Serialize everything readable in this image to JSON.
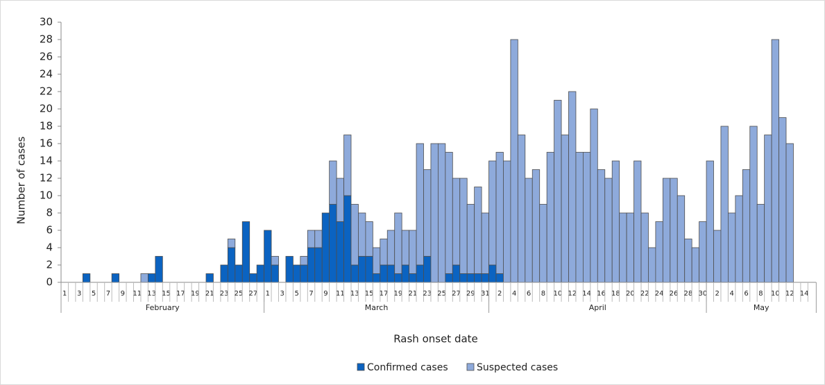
{
  "chart_data": {
    "type": "stacked-bar",
    "x_label": "Rash onset date",
    "y_label": "Number of cases",
    "categories": [
      "1",
      null,
      "3",
      null,
      "5",
      null,
      "7",
      null,
      "9",
      null,
      "11",
      null,
      "13",
      null,
      "15",
      null,
      "17",
      null,
      "19",
      null,
      "21",
      null,
      "23",
      null,
      "25",
      null,
      "27",
      null,
      "1",
      null,
      "3",
      null,
      "5",
      null,
      "7",
      null,
      "9",
      null,
      "11",
      null,
      "13",
      null,
      "15",
      null,
      "17",
      null,
      "19",
      null,
      "21",
      null,
      "23",
      null,
      "25",
      null,
      "27",
      null,
      "29",
      null,
      "31",
      null,
      "2",
      null,
      "4",
      null,
      "6",
      null,
      "8",
      null,
      "10",
      null,
      "12",
      null,
      "14",
      null,
      "16",
      null,
      "18",
      null,
      "20",
      null,
      "22",
      null,
      "24",
      null,
      "26",
      null,
      "28",
      null,
      "30",
      null,
      "2",
      null,
      "4",
      null,
      "6",
      null,
      "8",
      null,
      "10",
      null,
      "12",
      null,
      "14"
    ],
    "months": [
      "February",
      "March",
      "April",
      "May"
    ],
    "series": [
      {
        "name": "Confirmed cases",
        "color": "#0b63c1",
        "values": [
          0,
          0,
          0,
          1,
          0,
          0,
          0,
          1,
          0,
          0,
          0,
          0,
          1,
          3,
          0,
          0,
          0,
          0,
          0,
          0,
          1,
          0,
          2,
          4,
          2,
          7,
          1,
          2,
          6,
          2,
          0,
          3,
          2,
          2,
          4,
          4,
          8,
          9,
          7,
          10,
          2,
          3,
          3,
          1,
          2,
          2,
          1,
          2,
          1,
          2,
          3,
          0,
          0,
          1,
          2,
          1,
          1,
          1,
          1,
          2,
          1,
          0,
          0,
          0,
          0,
          0,
          0,
          0,
          0,
          0,
          0,
          0,
          0,
          0,
          0,
          0,
          0,
          0,
          0,
          0,
          0,
          0,
          0,
          0,
          0,
          0,
          0,
          0,
          0,
          0,
          0,
          0,
          0,
          0,
          0,
          0,
          0,
          0,
          0,
          0,
          0,
          0,
          0
        ]
      },
      {
        "name": "Suspected cases",
        "color": "#8eaadb",
        "values": [
          0,
          0,
          0,
          0,
          0,
          0,
          0,
          0,
          0,
          0,
          0,
          1,
          0,
          0,
          0,
          0,
          0,
          0,
          0,
          0,
          0,
          0,
          0,
          1,
          0,
          0,
          0,
          0,
          0,
          1,
          0,
          0,
          0,
          1,
          2,
          2,
          0,
          5,
          5,
          7,
          7,
          5,
          4,
          3,
          3,
          4,
          7,
          4,
          5,
          14,
          10,
          16,
          16,
          14,
          10,
          11,
          8,
          10,
          7,
          12,
          14,
          14,
          28,
          17,
          12,
          13,
          9,
          15,
          21,
          17,
          22,
          15,
          15,
          20,
          13,
          12,
          14,
          8,
          8,
          14,
          8,
          4,
          7,
          12,
          12,
          10,
          5,
          4,
          7,
          14,
          6,
          18,
          8,
          10,
          13,
          18,
          9,
          17,
          28,
          19,
          16,
          0,
          0
        ]
      }
    ],
    "ylim": [
      0,
      30
    ],
    "yticks": [
      0,
      2,
      4,
      6,
      8,
      10,
      12,
      14,
      16,
      18,
      20,
      22,
      24,
      26,
      28,
      30
    ],
    "grid": false,
    "legend": "bottom"
  }
}
